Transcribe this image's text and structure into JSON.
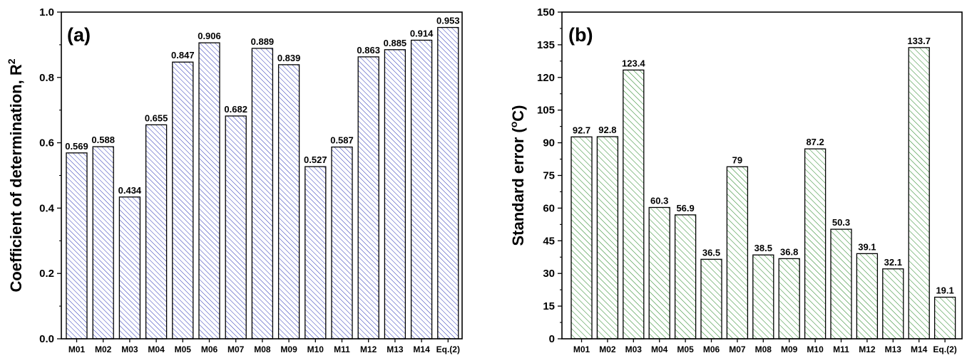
{
  "chart_data": [
    {
      "type": "bar",
      "panel_label": "(a)",
      "ylabel": "Coefficient of determination, R",
      "ylabel_sup": "2",
      "ylabel_suffix": "",
      "ylim": [
        0.0,
        1.0
      ],
      "yticks": [
        "0.0",
        "0.2",
        "0.4",
        "0.6",
        "0.8",
        "1.0"
      ],
      "yticks_values": [
        0.0,
        0.2,
        0.4,
        0.6,
        0.8,
        1.0
      ],
      "categories": [
        "M01",
        "M02",
        "M03",
        "M04",
        "M05",
        "M06",
        "M07",
        "M08",
        "M09",
        "M10",
        "M11",
        "M12",
        "M13",
        "M14",
        "Eq.(2)"
      ],
      "values": [
        0.569,
        0.588,
        0.434,
        0.655,
        0.847,
        0.906,
        0.682,
        0.889,
        0.839,
        0.527,
        0.587,
        0.863,
        0.885,
        0.914,
        0.953
      ],
      "value_labels": [
        "0.569",
        "0.588",
        "0.434",
        "0.655",
        "0.847",
        "0.906",
        "0.682",
        "0.889",
        "0.839",
        "0.527",
        "0.587",
        "0.863",
        "0.885",
        "0.914",
        "0.953"
      ],
      "bar_color": "#2b35b5",
      "bar_fill": "#ffffff",
      "hatch": "diagonal"
    },
    {
      "type": "bar",
      "panel_label": "(b)",
      "ylabel": "Standard error (",
      "ylabel_sup": "o",
      "ylabel_suffix": "C)",
      "ylim": [
        0,
        150
      ],
      "yticks": [
        "0",
        "15",
        "30",
        "45",
        "60",
        "75",
        "90",
        "105",
        "120",
        "135",
        "150"
      ],
      "yticks_values": [
        0,
        15,
        30,
        45,
        60,
        75,
        90,
        105,
        120,
        135,
        150
      ],
      "categories": [
        "M01",
        "M02",
        "M03",
        "M04",
        "M05",
        "M06",
        "M07",
        "M08",
        "M09",
        "M10",
        "M11",
        "M12",
        "M13",
        "M14",
        "Eq.(2)"
      ],
      "values": [
        92.7,
        92.8,
        123.4,
        60.3,
        56.9,
        36.5,
        79,
        38.5,
        36.8,
        87.2,
        50.3,
        39.1,
        32.1,
        133.7,
        19.1
      ],
      "value_labels": [
        "92.7",
        "92.8",
        "123.4",
        "60.3",
        "56.9",
        "36.5",
        "79",
        "38.5",
        "36.8",
        "87.2",
        "50.3",
        "39.1",
        "32.1",
        "133.7",
        "19.1"
      ],
      "bar_color": "#2e8b2e",
      "bar_fill": "#ffffff",
      "hatch": "diagonal"
    }
  ]
}
